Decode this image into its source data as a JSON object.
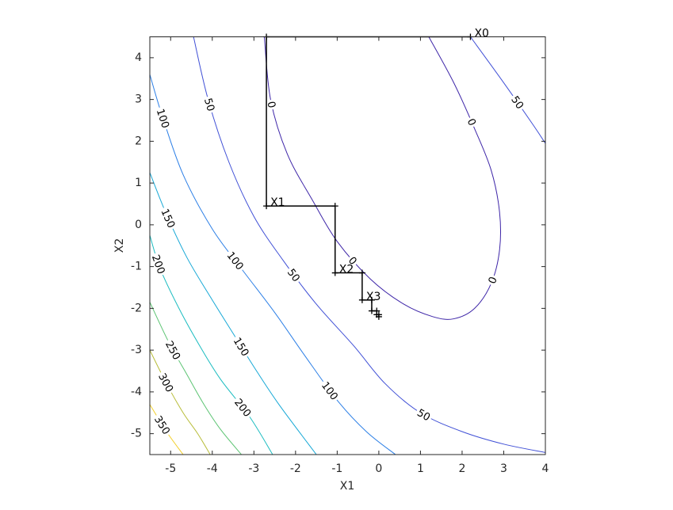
{
  "chart_data": {
    "type": "contour",
    "x_label": "X1",
    "y_label": "X2",
    "xlim": [
      -5.5,
      4
    ],
    "ylim": [
      -5.5,
      4.5
    ],
    "xticks": [
      -5,
      -4,
      -3,
      -2,
      -1,
      0,
      1,
      2,
      3,
      4
    ],
    "yticks": [
      -5,
      -4,
      -3,
      -2,
      -1,
      0,
      1,
      2,
      3,
      4
    ],
    "contours": [
      {
        "level": 0,
        "color": "#3e26a8",
        "x": [
          -2.75,
          -2.6,
          -2.2,
          -1.6,
          -1.0,
          -0.2,
          0.6,
          1.3,
          1.8,
          2.3,
          2.7,
          2.9,
          2.9,
          2.7,
          2.3,
          1.8,
          1.2
        ],
        "y": [
          4.5,
          3.0,
          1.7,
          0.6,
          -0.4,
          -1.3,
          -1.9,
          -2.2,
          -2.25,
          -2.0,
          -1.4,
          -0.6,
          0.3,
          1.3,
          2.3,
          3.4,
          4.5
        ]
      },
      {
        "level": 50,
        "color": "#4050d6",
        "x": [
          -4.45,
          -4.1,
          -3.6,
          -3.0,
          -2.3,
          -1.5,
          -0.6,
          0.15,
          1.0,
          2.0,
          3.0,
          4.0
        ],
        "y": [
          4.5,
          3.0,
          1.5,
          0.2,
          -0.85,
          -1.9,
          -2.9,
          -3.8,
          -4.5,
          -4.95,
          -5.25,
          -5.45
        ]
      },
      {
        "level": 50,
        "color": "#4050d6",
        "x": [
          2.2,
          3.0,
          3.7,
          4.0
        ],
        "y": [
          4.5,
          3.4,
          2.4,
          1.95
        ]
      },
      {
        "level": 100,
        "color": "#2c7fe6",
        "x": [
          -5.5,
          -5.2,
          -4.7,
          -4.0,
          -3.3,
          -2.5,
          -1.8,
          -1.0,
          -0.3,
          0.4
        ],
        "y": [
          3.6,
          2.6,
          1.2,
          -0.1,
          -1.05,
          -2.1,
          -3.1,
          -4.2,
          -4.95,
          -5.5
        ]
      },
      {
        "level": 150,
        "color": "#17a8d6",
        "x": [
          -5.5,
          -5.1,
          -4.6,
          -4.0,
          -3.5,
          -3.0,
          -2.4,
          -1.5
        ],
        "y": [
          1.25,
          0.25,
          -0.8,
          -1.8,
          -2.6,
          -3.4,
          -4.3,
          -5.5
        ]
      },
      {
        "level": 200,
        "color": "#1bbcc0",
        "x": [
          -5.5,
          -5.25,
          -4.8,
          -4.3,
          -3.8,
          -3.1,
          -2.55
        ],
        "y": [
          -0.25,
          -1.05,
          -2.0,
          -2.9,
          -3.7,
          -4.6,
          -5.5
        ]
      },
      {
        "level": 250,
        "color": "#5cc473",
        "x": [
          -5.5,
          -5.05,
          -4.6,
          -4.2,
          -3.8,
          -3.3
        ],
        "y": [
          -1.85,
          -2.8,
          -3.6,
          -4.3,
          -4.9,
          -5.5
        ]
      },
      {
        "level": 300,
        "color": "#b8bd3a",
        "x": [
          -5.5,
          -5.1,
          -4.7,
          -4.35,
          -4.05
        ],
        "y": [
          -3.0,
          -3.8,
          -4.5,
          -5.0,
          -5.5
        ]
      },
      {
        "level": 350,
        "color": "#f2cf2a",
        "x": [
          -5.5,
          -5.1,
          -4.7
        ],
        "y": [
          -4.3,
          -4.95,
          -5.5
        ]
      }
    ],
    "path": {
      "color": "#000000",
      "x": [
        2.2,
        -2.7,
        -2.7,
        -1.05,
        -1.05,
        -0.4,
        -0.4,
        -0.17,
        -0.17,
        -0.05,
        -0.05,
        0,
        0
      ],
      "y": [
        4.5,
        4.5,
        0.45,
        0.45,
        -1.15,
        -1.15,
        -1.8,
        -1.8,
        -2.06,
        -2.06,
        -2.15,
        -2.15,
        -2.2
      ],
      "labels": [
        "X0",
        null,
        "X1",
        null,
        "X2",
        null,
        "X3",
        null,
        null,
        null,
        null,
        null,
        null
      ]
    }
  }
}
